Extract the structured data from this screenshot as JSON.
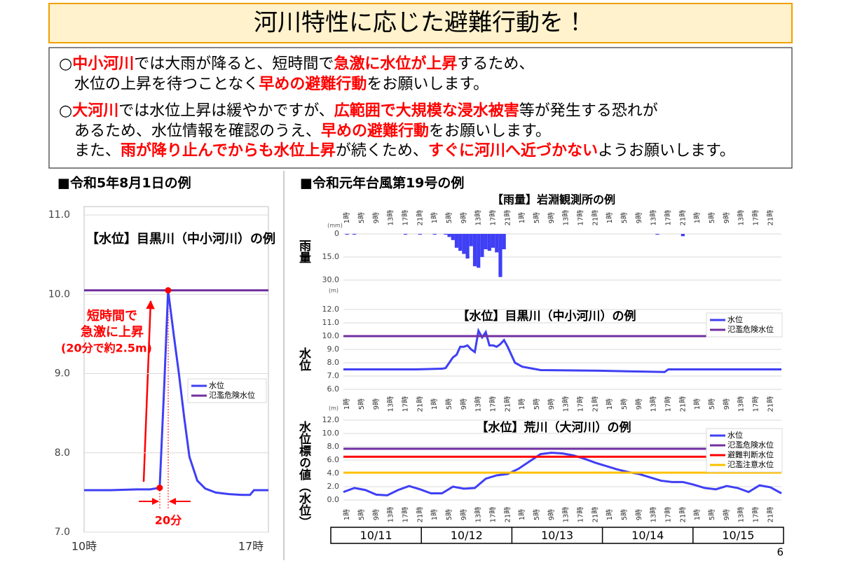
{
  "title": "河川特性に応じた避難行動を！",
  "notes": [
    [
      {
        "text": "○"
      },
      {
        "text": "中小河川",
        "emphasis": true
      },
      {
        "text": "では大雨が降ると、短時間で"
      },
      {
        "text": "急激に水位が上昇",
        "emphasis": true
      },
      {
        "text": "するため、"
      }
    ],
    [
      {
        "text": "水位の上昇を待つことなく"
      },
      {
        "text": "早めの避難行動",
        "emphasis": true
      },
      {
        "text": "をお願いします。"
      }
    ],
    [
      {
        "text": "○"
      },
      {
        "text": "大河川",
        "emphasis": true
      },
      {
        "text": "では水位上昇は緩やかですが、"
      },
      {
        "text": "広範囲で大規模な浸水被害",
        "emphasis": true
      },
      {
        "text": "等が発生する恐れが"
      }
    ],
    [
      {
        "text": "あるため、水位情報を確認のうえ、"
      },
      {
        "text": "早めの避難行動",
        "emphasis": true
      },
      {
        "text": "をお願いします。"
      }
    ],
    [
      {
        "text": "また、"
      },
      {
        "text": "雨が降り止んでからも水位上昇",
        "emphasis": true
      },
      {
        "text": "が続くため、"
      },
      {
        "text": "すぐに河川へ近づかない",
        "emphasis": true
      },
      {
        "text": "ようお願いします。"
      }
    ]
  ],
  "left_heading": "■令和5年8月1日の例",
  "right_heading": "■令和元年台風第19号の例",
  "page_number": "6",
  "chart_data": [
    {
      "type": "line",
      "title": "【水位】目黒川（中小河川）の例",
      "grid": true,
      "legend": "right",
      "xlim": [
        10,
        17
      ],
      "xticks": [
        {
          "value": 10,
          "label": "10時"
        },
        {
          "value": 17,
          "label": "17時"
        }
      ],
      "ylim": [
        7,
        11
      ],
      "yticks": [
        {
          "value": 7,
          "label": "7.0"
        },
        {
          "value": 8,
          "label": "8.0"
        },
        {
          "value": 9,
          "label": "9.0"
        },
        {
          "value": 10,
          "label": "10.0"
        },
        {
          "value": 11,
          "label": "11.0"
        }
      ],
      "series": [
        {
          "name": "水位",
          "color": "#3f3ff5",
          "x": [
            10,
            11,
            12,
            12.5,
            12.87,
            13.05,
            13.19,
            13.4,
            13.6,
            13.8,
            14.0,
            14.3,
            14.6,
            15.0,
            15.5,
            16.0,
            16.3,
            16.45,
            17
          ],
          "values": [
            7.53,
            7.53,
            7.54,
            7.54,
            7.56,
            8.9,
            10.05,
            9.5,
            9.0,
            8.45,
            7.95,
            7.65,
            7.55,
            7.5,
            7.48,
            7.47,
            7.47,
            7.53,
            7.53
          ]
        },
        {
          "name": "氾濫危険水位",
          "color": "#7030a0",
          "x": [
            10,
            17
          ],
          "values": [
            10.05,
            10.05
          ]
        }
      ],
      "annotations": [
        "短時間で",
        "急激に上昇",
        "(20分で約2.5m)",
        "20分"
      ]
    },
    {
      "type": "bar",
      "title": "【雨量】岩淵観測所の例",
      "y_label": "雨量",
      "y_unit": "(mm)",
      "y_inverted": true,
      "grid": true,
      "color": "#3f3ff5",
      "xlim": [
        0,
        120
      ],
      "xticks": [
        {
          "value": 1,
          "label": "1時"
        },
        {
          "value": 5,
          "label": "5時"
        },
        {
          "value": 9,
          "label": "9時"
        },
        {
          "value": 13,
          "label": "13時"
        },
        {
          "value": 17,
          "label": "17時"
        },
        {
          "value": 21,
          "label": "21時"
        },
        {
          "value": 25,
          "label": "1時"
        },
        {
          "value": 29,
          "label": "5時"
        },
        {
          "value": 33,
          "label": "9時"
        },
        {
          "value": 37,
          "label": "13時"
        },
        {
          "value": 41,
          "label": "17時"
        },
        {
          "value": 45,
          "label": "21時"
        },
        {
          "value": 49,
          "label": "1時"
        },
        {
          "value": 53,
          "label": "5時"
        },
        {
          "value": 57,
          "label": "9時"
        },
        {
          "value": 61,
          "label": "13時"
        },
        {
          "value": 65,
          "label": "17時"
        },
        {
          "value": 69,
          "label": "21時"
        },
        {
          "value": 73,
          "label": "1時"
        },
        {
          "value": 77,
          "label": "5時"
        },
        {
          "value": 81,
          "label": "9時"
        },
        {
          "value": 85,
          "label": "13時"
        },
        {
          "value": 89,
          "label": "17時"
        },
        {
          "value": 93,
          "label": "21時"
        },
        {
          "value": 97,
          "label": "1時"
        },
        {
          "value": 101,
          "label": "5時"
        },
        {
          "value": 105,
          "label": "9時"
        },
        {
          "value": 109,
          "label": "13時"
        },
        {
          "value": 113,
          "label": "17時"
        },
        {
          "value": 117,
          "label": "21時"
        }
      ],
      "ylim": [
        0,
        30
      ],
      "yticks": [
        0,
        {
          "value": 15,
          "label": "15.0"
        },
        {
          "value": 30,
          "label": "30.0"
        }
      ],
      "x": [
        1,
        3,
        17,
        21,
        25,
        28,
        29,
        30,
        31,
        32,
        33,
        34,
        35,
        36,
        37,
        38,
        39,
        40,
        41,
        42,
        43,
        44,
        86,
        93
      ],
      "values": [
        0.5,
        0.5,
        0.5,
        0.5,
        0.5,
        0.5,
        2,
        4,
        9,
        11,
        13,
        16,
        8,
        21,
        22,
        15,
        10,
        11,
        9,
        12,
        28,
        10,
        0.5,
        1.5
      ]
    },
    {
      "type": "line",
      "title": "【水位】目黒川（中小河川）の例",
      "y_label": "水位",
      "y_unit": "(m)",
      "grid": true,
      "legend": "top-right",
      "xlim": [
        0,
        120
      ],
      "xticks": [
        {
          "value": 1,
          "label": "1時"
        },
        {
          "value": 5,
          "label": "5時"
        },
        {
          "value": 9,
          "label": "9時"
        },
        {
          "value": 13,
          "label": "13時"
        },
        {
          "value": 17,
          "label": "17時"
        },
        {
          "value": 21,
          "label": "21時"
        },
        {
          "value": 25,
          "label": "1時"
        },
        {
          "value": 29,
          "label": "5時"
        },
        {
          "value": 33,
          "label": "9時"
        },
        {
          "value": 37,
          "label": "13時"
        },
        {
          "value": 41,
          "label": "17時"
        },
        {
          "value": 45,
          "label": "21時"
        },
        {
          "value": 49,
          "label": "1時"
        },
        {
          "value": 53,
          "label": "5時"
        },
        {
          "value": 57,
          "label": "9時"
        },
        {
          "value": 61,
          "label": "13時"
        },
        {
          "value": 65,
          "label": "17時"
        },
        {
          "value": 69,
          "label": "21時"
        },
        {
          "value": 73,
          "label": "1時"
        },
        {
          "value": 77,
          "label": "5時"
        },
        {
          "value": 81,
          "label": "9時"
        },
        {
          "value": 85,
          "label": "13時"
        },
        {
          "value": 89,
          "label": "17時"
        },
        {
          "value": 93,
          "label": "21時"
        },
        {
          "value": 97,
          "label": "1時"
        },
        {
          "value": 101,
          "label": "5時"
        },
        {
          "value": 105,
          "label": "9時"
        },
        {
          "value": 109,
          "label": "13時"
        },
        {
          "value": 113,
          "label": "17時"
        },
        {
          "value": 117,
          "label": "21時"
        }
      ],
      "ylim": [
        6,
        12
      ],
      "yticks": [
        {
          "value": 6,
          "label": "6.0"
        },
        {
          "value": 7,
          "label": "7.0"
        },
        {
          "value": 8,
          "label": "8.0"
        },
        {
          "value": 9,
          "label": "9.0"
        },
        {
          "value": 10,
          "label": "10.0"
        },
        {
          "value": 11,
          "label": "11.0"
        },
        {
          "value": 12,
          "label": "12.0"
        }
      ],
      "series": [
        {
          "name": "水位",
          "color": "#3f3ff5",
          "x": [
            0,
            20,
            27,
            28,
            30,
            31,
            32,
            33,
            34,
            35,
            36,
            37,
            38,
            39,
            40,
            41,
            42,
            43,
            44,
            45,
            46,
            47,
            49,
            54,
            70,
            88,
            89,
            120
          ],
          "values": [
            7.5,
            7.5,
            7.55,
            7.6,
            8.4,
            8.6,
            9.2,
            9.2,
            9.3,
            9.0,
            8.8,
            10.4,
            9.9,
            10.3,
            9.3,
            9.3,
            9.2,
            9.4,
            9.7,
            9.2,
            8.6,
            8.0,
            7.7,
            7.45,
            7.4,
            7.3,
            7.5,
            7.5
          ]
        },
        {
          "name": "氾濫危険水位",
          "color": "#7030a0",
          "x": [
            0,
            120
          ],
          "values": [
            10,
            10
          ]
        }
      ]
    },
    {
      "type": "line",
      "title": "【水位】荒川（大河川）の例",
      "y_label": "水位標の値（水位）",
      "y_unit": "(m)",
      "grid": true,
      "legend": "top-right",
      "xlim": [
        0,
        120
      ],
      "xticks": [
        {
          "value": 1,
          "label": "1時"
        },
        {
          "value": 5,
          "label": "5時"
        },
        {
          "value": 9,
          "label": "9時"
        },
        {
          "value": 13,
          "label": "13時"
        },
        {
          "value": 17,
          "label": "17時"
        },
        {
          "value": 21,
          "label": "21時"
        },
        {
          "value": 25,
          "label": "1時"
        },
        {
          "value": 29,
          "label": "5時"
        },
        {
          "value": 33,
          "label": "9時"
        },
        {
          "value": 37,
          "label": "13時"
        },
        {
          "value": 41,
          "label": "17時"
        },
        {
          "value": 45,
          "label": "21時"
        },
        {
          "value": 49,
          "label": "1時"
        },
        {
          "value": 53,
          "label": "5時"
        },
        {
          "value": 57,
          "label": "9時"
        },
        {
          "value": 61,
          "label": "13時"
        },
        {
          "value": 65,
          "label": "17時"
        },
        {
          "value": 69,
          "label": "21時"
        },
        {
          "value": 73,
          "label": "1時"
        },
        {
          "value": 77,
          "label": "5時"
        },
        {
          "value": 81,
          "label": "9時"
        },
        {
          "value": 85,
          "label": "13時"
        },
        {
          "value": 89,
          "label": "17時"
        },
        {
          "value": 93,
          "label": "21時"
        },
        {
          "value": 97,
          "label": "1時"
        },
        {
          "value": 101,
          "label": "5時"
        },
        {
          "value": 105,
          "label": "9時"
        },
        {
          "value": 109,
          "label": "13時"
        },
        {
          "value": 113,
          "label": "17時"
        },
        {
          "value": 117,
          "label": "21時"
        }
      ],
      "ylim": [
        0,
        12
      ],
      "yticks": [
        {
          "value": 0,
          "label": "0.0"
        },
        {
          "value": 2,
          "label": "2.0"
        },
        {
          "value": 4,
          "label": "4.0"
        },
        {
          "value": 6,
          "label": "6.0"
        },
        {
          "value": 8,
          "label": "8.0"
        },
        {
          "value": 10,
          "label": "10.0"
        },
        {
          "value": 12,
          "label": "12.0"
        }
      ],
      "series": [
        {
          "name": "水位",
          "color": "#3f3ff5",
          "x": [
            0,
            3,
            6,
            9,
            12,
            15,
            18,
            21,
            24,
            27,
            30,
            33,
            36,
            39,
            42,
            45,
            48,
            51,
            54,
            57,
            60,
            63,
            66,
            69,
            72,
            75,
            78,
            81,
            84,
            87,
            90,
            93,
            96,
            99,
            102,
            105,
            108,
            111,
            114,
            117,
            120
          ],
          "values": [
            1.2,
            1.8,
            1.5,
            0.8,
            0.7,
            1.5,
            2.1,
            1.6,
            1.0,
            1.0,
            2.0,
            1.7,
            1.8,
            3.2,
            3.7,
            3.9,
            4.7,
            5.8,
            6.9,
            7.1,
            7.0,
            6.7,
            6.2,
            5.6,
            5.1,
            4.6,
            4.2,
            3.9,
            3.4,
            2.9,
            2.7,
            2.7,
            2.3,
            1.8,
            1.6,
            2.1,
            1.8,
            1.2,
            2.2,
            1.9,
            1.0
          ]
        },
        {
          "name": "氾濫危険水位",
          "color": "#7030a0",
          "x": [
            0,
            120
          ],
          "values": [
            7.7,
            7.7
          ]
        },
        {
          "name": "避難判断水位",
          "color": "#ff0000",
          "x": [
            0,
            120
          ],
          "values": [
            6.5,
            6.5
          ]
        },
        {
          "name": "氾濫注意水位",
          "color": "#ffc000",
          "x": [
            0,
            120
          ],
          "values": [
            4.1,
            4.1
          ]
        }
      ],
      "date_categories": [
        "10/11",
        "10/12",
        "10/13",
        "10/14",
        "10/15"
      ]
    }
  ]
}
